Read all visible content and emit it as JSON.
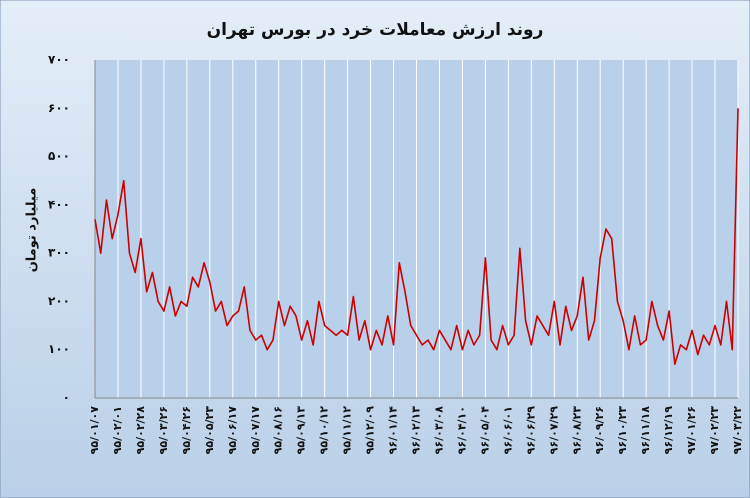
{
  "chart_data": {
    "type": "line",
    "title": "روند ارزش معاملات خرد در بورس تهران",
    "y_label": "میلیارد تومان",
    "categories": [
      "۹۵/۰۱/۰۷",
      null,
      null,
      null,
      "۹۵/۰۲/۰۱",
      null,
      null,
      null,
      "۹۵/۰۲/۲۸",
      null,
      null,
      null,
      "۹۵/۰۳/۲۶",
      null,
      null,
      null,
      "۹۵/۰۴/۲۶",
      null,
      null,
      null,
      "۹۵/۰۵/۲۳",
      null,
      null,
      null,
      "۹۵/۰۶/۱۷",
      null,
      null,
      null,
      "۹۵/۰۷/۱۷",
      null,
      null,
      null,
      "۹۵/۰۸/۱۶",
      null,
      null,
      null,
      "۹۵/۰۹/۱۳",
      null,
      null,
      null,
      "۹۵/۱۰/۱۲",
      null,
      null,
      null,
      "۹۵/۱۱/۱۲",
      null,
      null,
      null,
      "۹۵/۱۲/۰۹",
      null,
      null,
      null,
      "۹۶/۰۱/۱۴",
      null,
      null,
      null,
      "۹۶/۰۲/۱۳",
      null,
      null,
      null,
      "۹۶/۰۳/۰۸",
      null,
      null,
      null,
      "۹۶/۰۴/۱۰",
      null,
      null,
      null,
      "۹۶/۰۵/۰۴",
      null,
      null,
      null,
      "۹۶/۰۶/۰۱",
      null,
      null,
      null,
      "۹۶/۰۶/۲۹",
      null,
      null,
      null,
      "۹۶/۰۷/۲۹",
      null,
      null,
      null,
      "۹۶/۰۸/۲۳",
      null,
      null,
      null,
      "۹۶/۰۹/۲۶",
      null,
      null,
      null,
      "۹۶/۱۰/۲۳",
      null,
      null,
      null,
      "۹۶/۱۱/۱۸",
      null,
      null,
      null,
      "۹۶/۱۲/۱۹",
      null,
      null,
      null,
      "۹۷/۰۱/۲۶",
      null,
      null,
      null,
      "۹۷/۰۲/۲۳",
      null,
      null,
      null,
      "۹۷/۰۳/۲۲"
    ],
    "values": [
      370,
      300,
      410,
      330,
      380,
      450,
      300,
      260,
      330,
      220,
      260,
      200,
      180,
      230,
      170,
      200,
      190,
      250,
      230,
      280,
      240,
      180,
      200,
      150,
      170,
      180,
      230,
      140,
      120,
      130,
      100,
      120,
      200,
      150,
      190,
      170,
      120,
      160,
      110,
      200,
      150,
      140,
      130,
      140,
      130,
      210,
      120,
      160,
      100,
      140,
      110,
      170,
      110,
      280,
      220,
      150,
      130,
      110,
      120,
      100,
      140,
      120,
      100,
      150,
      100,
      140,
      110,
      130,
      290,
      120,
      100,
      150,
      110,
      130,
      310,
      160,
      110,
      170,
      150,
      130,
      200,
      110,
      190,
      140,
      170,
      250,
      120,
      160,
      290,
      350,
      330,
      200,
      160,
      100,
      170,
      110,
      120,
      200,
      150,
      120,
      180,
      70,
      110,
      100,
      140,
      90,
      130,
      110,
      150,
      110,
      200,
      100,
      600
    ],
    "color": "#cc0000",
    "ylim": [
      0,
      700
    ],
    "yticks": [
      {
        "value": 0,
        "label": "۰"
      },
      {
        "value": 100,
        "label": "۱۰۰"
      },
      {
        "value": 200,
        "label": "۲۰۰"
      },
      {
        "value": 300,
        "label": "۳۰۰"
      },
      {
        "value": 400,
        "label": "۴۰۰"
      },
      {
        "value": 500,
        "label": "۵۰۰"
      },
      {
        "value": 600,
        "label": "۶۰۰"
      },
      {
        "value": 700,
        "label": "۷۰۰"
      }
    ],
    "grid": "x"
  }
}
